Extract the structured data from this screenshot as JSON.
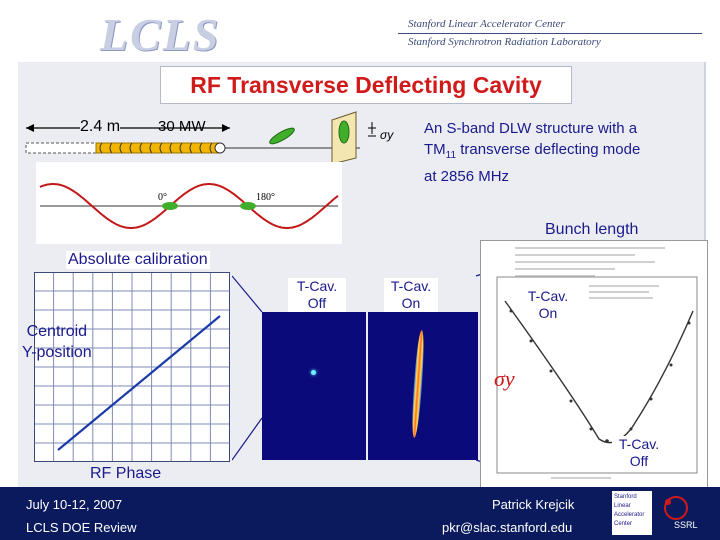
{
  "header": {
    "logo_text": "LCLS",
    "org_line1": "Stanford Linear Accelerator Center",
    "org_line2": "Stanford Synchrotron Radiation Laboratory"
  },
  "slide": {
    "title": "RF Transverse Deflecting Cavity",
    "length_label": "2.4 m",
    "power_label": "30 MW",
    "sigma_y_small": "σy",
    "description_line1": "An S-band DLW structure with a",
    "description_line2_prefix": "TM",
    "description_line2_sub": "11",
    "description_line2_suffix": " transverse deflecting mode",
    "description_line3": "at 2856 MHz",
    "phase_0": "0°",
    "phase_180": "180°",
    "bunch_length": "Bunch length",
    "absolute_calibration": "Absolute calibration",
    "centroid_line1": "Centroid",
    "centroid_line2": "Y-position",
    "rf_phase": "RF Phase",
    "tcav_off_1": "T-Cav. Off",
    "tcav_on_1": "T-Cav. On",
    "tcav_on_2": "T-Cav. On",
    "tcav_off_2": "T-Cav. Off",
    "sigma_y_big": "σy"
  },
  "footer": {
    "date": "July 10-12, 2007",
    "review": "LCLS DOE Review",
    "author": "Patrick Krejcik",
    "email": "pkr@slac.stanford.edu",
    "logo_line1": "Stanford",
    "logo_line2": "Linear",
    "logo_line3": "Accelerator",
    "logo_line4": "Center",
    "ssrl": "SSRL"
  },
  "colors": {
    "title_red": "#d11a1a",
    "text_blue": "#1a1a8c",
    "footer_navy": "#0a1a5c",
    "sine_red": "#c21818",
    "cavity_yellow": "#f2b500",
    "bunch_green": "#3fae2a",
    "calib_line_blue": "#1a3aa8"
  }
}
